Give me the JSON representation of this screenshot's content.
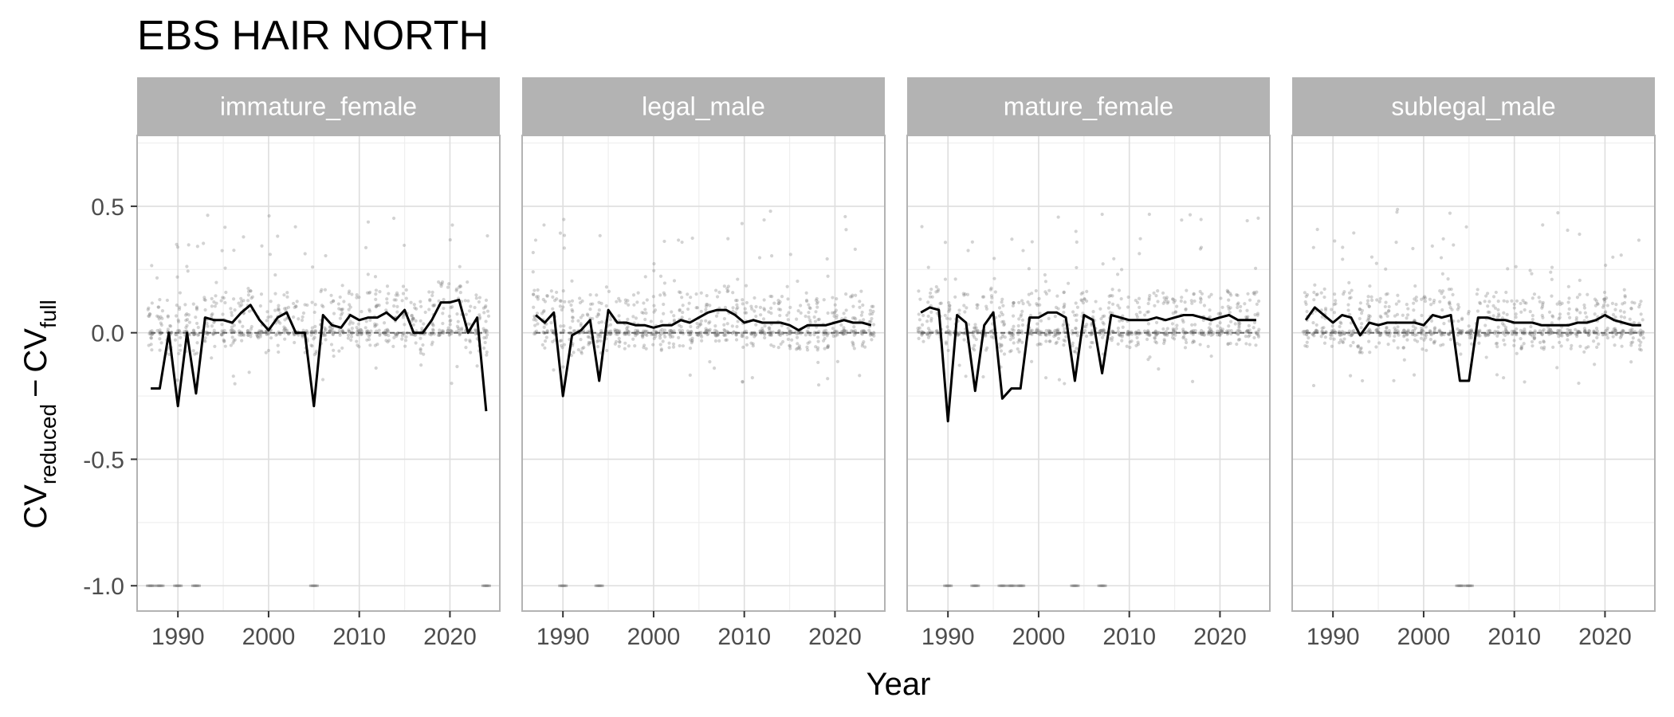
{
  "title": "EBS HAIR NORTH",
  "x_axis_label": "Year",
  "y_axis_label": {
    "main": "CV",
    "sub1": "reduced",
    "minus": "−",
    "sub2": "full"
  },
  "y_ticks": [
    "0.5",
    "0.0",
    "-0.5",
    "-1.0"
  ],
  "x_ticks": [
    "1990",
    "2000",
    "2010",
    "2020"
  ],
  "colors": {
    "strip_bg": "#b3b3b3",
    "strip_text": "#ffffff",
    "panel_border": "#b3b3b3",
    "grid_major": "#dedede",
    "grid_minor": "#efefef",
    "points": "#808080",
    "line": "#000000",
    "zero_line": "#666666"
  },
  "chart_data": {
    "type": "line",
    "x_label": "Year",
    "facets": [
      "immature_female",
      "legal_male",
      "mature_female",
      "sublegal_male"
    ],
    "xlim": [
      1985.5,
      2025.5
    ],
    "ylim": [
      -1.1,
      0.78
    ],
    "x_ticks": [
      1990,
      2000,
      2010,
      2020
    ],
    "y_ticks": [
      -1.0,
      -0.5,
      0.0,
      0.5
    ],
    "series": [
      {
        "facet": "immature_female",
        "x": [
          1987,
          1988,
          1989,
          1990,
          1991,
          1992,
          1993,
          1994,
          1995,
          1996,
          1997,
          1998,
          1999,
          2000,
          2001,
          2002,
          2003,
          2004,
          2005,
          2006,
          2007,
          2008,
          2009,
          2010,
          2011,
          2012,
          2013,
          2014,
          2015,
          2016,
          2017,
          2018,
          2019,
          2020,
          2021,
          2022,
          2023,
          2024
        ],
        "y": [
          -0.22,
          -0.22,
          0.0,
          -0.29,
          0.0,
          -0.24,
          0.06,
          0.05,
          0.05,
          0.04,
          0.08,
          0.11,
          0.05,
          0.01,
          0.06,
          0.08,
          0.0,
          0.0,
          -0.29,
          0.07,
          0.03,
          0.02,
          0.07,
          0.05,
          0.06,
          0.06,
          0.08,
          0.05,
          0.09,
          0.0,
          0.0,
          0.05,
          0.12,
          0.12,
          0.13,
          0.0,
          0.06,
          -0.31
        ]
      },
      {
        "facet": "legal_male",
        "x": [
          1987,
          1988,
          1989,
          1990,
          1991,
          1992,
          1993,
          1994,
          1995,
          1996,
          1997,
          1998,
          1999,
          2000,
          2001,
          2002,
          2003,
          2004,
          2005,
          2006,
          2007,
          2008,
          2009,
          2010,
          2011,
          2012,
          2013,
          2014,
          2015,
          2016,
          2017,
          2018,
          2019,
          2020,
          2021,
          2022,
          2023,
          2024
        ],
        "y": [
          0.07,
          0.04,
          0.08,
          -0.25,
          -0.01,
          0.01,
          0.05,
          -0.19,
          0.09,
          0.04,
          0.04,
          0.03,
          0.03,
          0.02,
          0.03,
          0.03,
          0.05,
          0.04,
          0.06,
          0.08,
          0.09,
          0.09,
          0.07,
          0.04,
          0.05,
          0.04,
          0.04,
          0.04,
          0.03,
          0.01,
          0.03,
          0.03,
          0.03,
          0.04,
          0.05,
          0.04,
          0.04,
          0.03
        ]
      },
      {
        "facet": "mature_female",
        "x": [
          1987,
          1988,
          1989,
          1990,
          1991,
          1992,
          1993,
          1994,
          1995,
          1996,
          1997,
          1998,
          1999,
          2000,
          2001,
          2002,
          2003,
          2004,
          2005,
          2006,
          2007,
          2008,
          2009,
          2010,
          2011,
          2012,
          2013,
          2014,
          2015,
          2016,
          2017,
          2018,
          2019,
          2020,
          2021,
          2022,
          2023,
          2024
        ],
        "y": [
          0.08,
          0.1,
          0.09,
          -0.35,
          0.07,
          0.04,
          -0.23,
          0.03,
          0.08,
          -0.26,
          -0.22,
          -0.22,
          0.06,
          0.06,
          0.08,
          0.08,
          0.06,
          -0.19,
          0.07,
          0.05,
          -0.16,
          0.07,
          0.06,
          0.05,
          0.05,
          0.05,
          0.06,
          0.05,
          0.06,
          0.07,
          0.07,
          0.06,
          0.05,
          0.06,
          0.07,
          0.05,
          0.05,
          0.05
        ]
      },
      {
        "facet": "sublegal_male",
        "x": [
          1987,
          1988,
          1989,
          1990,
          1991,
          1992,
          1993,
          1994,
          1995,
          1996,
          1997,
          1998,
          1999,
          2000,
          2001,
          2002,
          2003,
          2004,
          2005,
          2006,
          2007,
          2008,
          2009,
          2010,
          2011,
          2012,
          2013,
          2014,
          2015,
          2016,
          2017,
          2018,
          2019,
          2020,
          2021,
          2022,
          2023,
          2024
        ],
        "y": [
          0.05,
          0.1,
          0.07,
          0.04,
          0.07,
          0.06,
          -0.01,
          0.04,
          0.03,
          0.04,
          0.04,
          0.04,
          0.04,
          0.03,
          0.07,
          0.06,
          0.07,
          -0.19,
          -0.19,
          0.06,
          0.06,
          0.05,
          0.05,
          0.04,
          0.04,
          0.04,
          0.03,
          0.03,
          0.03,
          0.03,
          0.04,
          0.04,
          0.05,
          0.07,
          0.05,
          0.04,
          0.03,
          0.03
        ]
      }
    ]
  }
}
